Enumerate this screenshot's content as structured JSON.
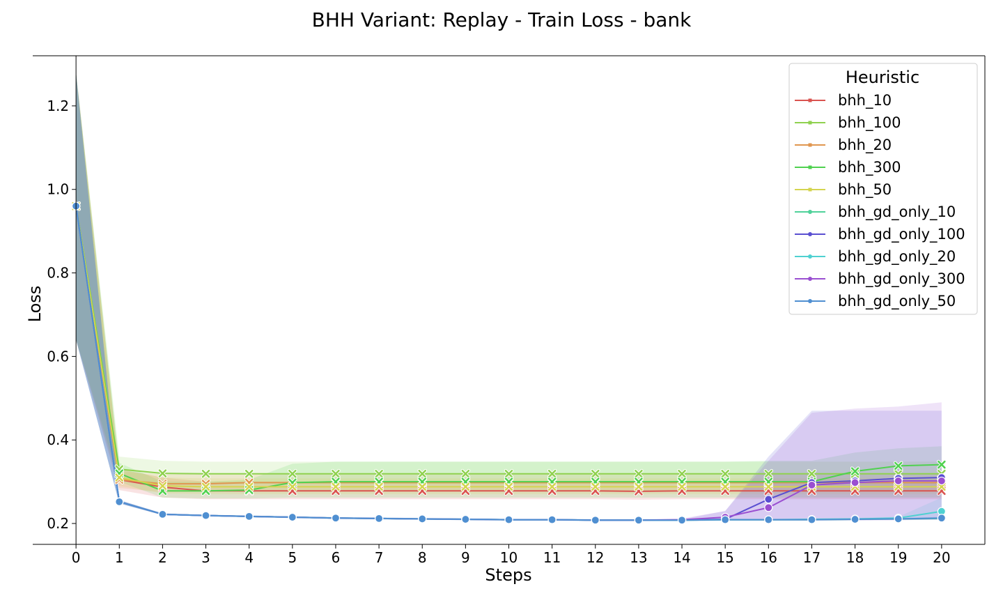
{
  "chart_data": {
    "type": "line",
    "title": "BHH Variant: Replay - Train Loss - bank",
    "xlabel": "Steps",
    "ylabel": "Loss",
    "xlim": [
      -1,
      21
    ],
    "ylim": [
      0.15,
      1.32
    ],
    "x_ticks": [
      0,
      1,
      2,
      3,
      4,
      5,
      6,
      7,
      8,
      9,
      10,
      11,
      12,
      13,
      14,
      15,
      16,
      17,
      18,
      19,
      20
    ],
    "y_ticks": [
      0.2,
      0.4,
      0.6,
      0.8,
      1.0,
      1.2
    ],
    "y_tick_labels": [
      "0.2",
      "0.4",
      "0.6",
      "0.8",
      "1.0",
      "1.2"
    ],
    "grid": false,
    "legend": {
      "title": "Heuristic",
      "position": "top-right"
    },
    "x": [
      0,
      1,
      2,
      3,
      4,
      5,
      6,
      7,
      8,
      9,
      10,
      11,
      12,
      13,
      14,
      15,
      16,
      17,
      18,
      19,
      20
    ],
    "series": [
      {
        "name": "bhh_10",
        "color": "#d9534f",
        "marker": "x",
        "values": [
          0.96,
          0.305,
          0.287,
          0.278,
          0.278,
          0.278,
          0.278,
          0.278,
          0.278,
          0.278,
          0.278,
          0.278,
          0.278,
          0.277,
          0.278,
          0.278,
          0.278,
          0.278,
          0.278,
          0.278,
          0.278
        ],
        "band_lower": [
          0.64,
          0.28,
          0.262,
          0.258,
          0.258,
          0.258,
          0.258,
          0.258,
          0.258,
          0.258,
          0.258,
          0.258,
          0.258,
          0.257,
          0.258,
          0.258,
          0.258,
          0.258,
          0.258,
          0.258,
          0.258
        ],
        "band_upper": [
          1.28,
          0.33,
          0.31,
          0.3,
          0.3,
          0.3,
          0.3,
          0.3,
          0.3,
          0.3,
          0.3,
          0.3,
          0.3,
          0.3,
          0.3,
          0.3,
          0.3,
          0.3,
          0.3,
          0.3,
          0.3
        ]
      },
      {
        "name": "bhh_100",
        "color": "#8fd14f",
        "marker": "x",
        "values": [
          0.96,
          0.33,
          0.32,
          0.319,
          0.319,
          0.319,
          0.319,
          0.319,
          0.319,
          0.319,
          0.319,
          0.319,
          0.319,
          0.319,
          0.319,
          0.319,
          0.319,
          0.319,
          0.319,
          0.319,
          0.319
        ],
        "band_lower": [
          0.64,
          0.305,
          0.295,
          0.295,
          0.295,
          0.295,
          0.295,
          0.295,
          0.295,
          0.295,
          0.295,
          0.295,
          0.295,
          0.295,
          0.295,
          0.295,
          0.295,
          0.295,
          0.295,
          0.295,
          0.295
        ],
        "band_upper": [
          1.28,
          0.36,
          0.35,
          0.348,
          0.348,
          0.348,
          0.348,
          0.348,
          0.348,
          0.348,
          0.348,
          0.348,
          0.348,
          0.348,
          0.348,
          0.348,
          0.348,
          0.348,
          0.348,
          0.348,
          0.348
        ]
      },
      {
        "name": "bhh_20",
        "color": "#e0964f",
        "marker": "x",
        "values": [
          0.96,
          0.305,
          0.295,
          0.295,
          0.298,
          0.298,
          0.298,
          0.298,
          0.298,
          0.298,
          0.298,
          0.298,
          0.298,
          0.298,
          0.298,
          0.298,
          0.298,
          0.298,
          0.298,
          0.298,
          0.298
        ],
        "band_lower": [
          0.64,
          0.285,
          0.275,
          0.275,
          0.278,
          0.278,
          0.278,
          0.278,
          0.278,
          0.278,
          0.278,
          0.278,
          0.278,
          0.278,
          0.278,
          0.278,
          0.278,
          0.278,
          0.278,
          0.278,
          0.278
        ],
        "band_upper": [
          1.28,
          0.325,
          0.318,
          0.318,
          0.32,
          0.32,
          0.32,
          0.32,
          0.32,
          0.32,
          0.32,
          0.32,
          0.32,
          0.32,
          0.32,
          0.32,
          0.32,
          0.32,
          0.32,
          0.32,
          0.32
        ]
      },
      {
        "name": "bhh_300",
        "color": "#4fd14f",
        "marker": "x",
        "values": [
          0.96,
          0.32,
          0.278,
          0.278,
          0.28,
          0.298,
          0.3,
          0.3,
          0.3,
          0.3,
          0.3,
          0.3,
          0.3,
          0.3,
          0.3,
          0.3,
          0.3,
          0.3,
          0.325,
          0.338,
          0.341
        ],
        "band_lower": [
          0.64,
          0.3,
          0.262,
          0.26,
          0.26,
          0.262,
          0.262,
          0.262,
          0.262,
          0.262,
          0.262,
          0.262,
          0.262,
          0.262,
          0.262,
          0.262,
          0.262,
          0.262,
          0.262,
          0.262,
          0.262
        ],
        "band_upper": [
          1.28,
          0.345,
          0.3,
          0.3,
          0.305,
          0.343,
          0.348,
          0.348,
          0.348,
          0.348,
          0.348,
          0.348,
          0.348,
          0.348,
          0.348,
          0.348,
          0.35,
          0.35,
          0.37,
          0.38,
          0.385
        ]
      },
      {
        "name": "bhh_50",
        "color": "#d4d44f",
        "marker": "x",
        "values": [
          0.96,
          0.31,
          0.29,
          0.288,
          0.288,
          0.288,
          0.288,
          0.288,
          0.288,
          0.288,
          0.288,
          0.288,
          0.288,
          0.288,
          0.288,
          0.288,
          0.288,
          0.288,
          0.288,
          0.288,
          0.288
        ],
        "band_lower": [
          0.64,
          0.29,
          0.272,
          0.27,
          0.27,
          0.27,
          0.27,
          0.27,
          0.27,
          0.27,
          0.27,
          0.27,
          0.27,
          0.27,
          0.27,
          0.27,
          0.27,
          0.27,
          0.27,
          0.27,
          0.27
        ],
        "band_upper": [
          1.28,
          0.33,
          0.31,
          0.308,
          0.308,
          0.308,
          0.308,
          0.308,
          0.308,
          0.308,
          0.308,
          0.308,
          0.308,
          0.308,
          0.308,
          0.308,
          0.308,
          0.308,
          0.308,
          0.308,
          0.308
        ]
      },
      {
        "name": "bhh_gd_only_10",
        "color": "#4fd19a",
        "marker": "o",
        "values": [
          0.96,
          0.252,
          0.222,
          0.219,
          0.217,
          0.215,
          0.213,
          0.212,
          0.211,
          0.21,
          0.209,
          0.209,
          0.208,
          0.208,
          0.208,
          0.209,
          0.209,
          0.209,
          0.21,
          0.211,
          0.212
        ],
        "band_lower": [
          0.64,
          0.248,
          0.22,
          0.217,
          0.215,
          0.213,
          0.211,
          0.21,
          0.209,
          0.208,
          0.207,
          0.207,
          0.206,
          0.206,
          0.206,
          0.207,
          0.207,
          0.207,
          0.208,
          0.209,
          0.21
        ],
        "band_upper": [
          1.28,
          0.256,
          0.224,
          0.221,
          0.219,
          0.217,
          0.215,
          0.214,
          0.213,
          0.212,
          0.211,
          0.211,
          0.21,
          0.21,
          0.21,
          0.211,
          0.211,
          0.211,
          0.212,
          0.213,
          0.214
        ]
      },
      {
        "name": "bhh_gd_only_100",
        "color": "#5a4fd1",
        "marker": "o",
        "values": [
          0.96,
          0.252,
          0.222,
          0.219,
          0.217,
          0.215,
          0.213,
          0.212,
          0.211,
          0.21,
          0.209,
          0.209,
          0.208,
          0.208,
          0.208,
          0.21,
          0.258,
          0.298,
          0.302,
          0.308,
          0.31
        ],
        "band_lower": [
          0.64,
          0.248,
          0.22,
          0.217,
          0.215,
          0.213,
          0.211,
          0.21,
          0.209,
          0.208,
          0.207,
          0.207,
          0.206,
          0.206,
          0.206,
          0.207,
          0.207,
          0.207,
          0.208,
          0.208,
          0.209
        ],
        "band_upper": [
          1.28,
          0.256,
          0.224,
          0.221,
          0.219,
          0.217,
          0.215,
          0.214,
          0.213,
          0.212,
          0.211,
          0.211,
          0.21,
          0.21,
          0.21,
          0.23,
          0.36,
          0.47,
          0.47,
          0.47,
          0.47
        ]
      },
      {
        "name": "bhh_gd_only_20",
        "color": "#4fd1d1",
        "marker": "o",
        "values": [
          0.96,
          0.252,
          0.222,
          0.219,
          0.217,
          0.215,
          0.213,
          0.212,
          0.211,
          0.21,
          0.209,
          0.209,
          0.208,
          0.208,
          0.208,
          0.209,
          0.209,
          0.21,
          0.211,
          0.213,
          0.229
        ],
        "band_lower": [
          0.64,
          0.248,
          0.22,
          0.217,
          0.215,
          0.213,
          0.211,
          0.21,
          0.209,
          0.208,
          0.207,
          0.207,
          0.206,
          0.206,
          0.206,
          0.207,
          0.207,
          0.208,
          0.209,
          0.21,
          0.21
        ],
        "band_upper": [
          1.28,
          0.256,
          0.224,
          0.221,
          0.219,
          0.217,
          0.215,
          0.214,
          0.213,
          0.212,
          0.211,
          0.211,
          0.21,
          0.21,
          0.21,
          0.211,
          0.211,
          0.212,
          0.213,
          0.216,
          0.262
        ]
      },
      {
        "name": "bhh_gd_only_300",
        "color": "#9a4fd1",
        "marker": "o",
        "values": [
          0.96,
          0.252,
          0.222,
          0.219,
          0.217,
          0.215,
          0.213,
          0.212,
          0.211,
          0.21,
          0.209,
          0.209,
          0.208,
          0.208,
          0.209,
          0.215,
          0.238,
          0.292,
          0.298,
          0.302,
          0.302
        ],
        "band_lower": [
          0.64,
          0.248,
          0.22,
          0.217,
          0.215,
          0.213,
          0.211,
          0.21,
          0.209,
          0.208,
          0.207,
          0.207,
          0.206,
          0.206,
          0.206,
          0.207,
          0.207,
          0.207,
          0.207,
          0.208,
          0.209
        ],
        "band_upper": [
          1.28,
          0.256,
          0.224,
          0.221,
          0.219,
          0.217,
          0.215,
          0.214,
          0.213,
          0.212,
          0.211,
          0.211,
          0.21,
          0.21,
          0.212,
          0.23,
          0.35,
          0.465,
          0.475,
          0.48,
          0.49
        ]
      },
      {
        "name": "bhh_gd_only_50",
        "color": "#4f8fd1",
        "marker": "o",
        "values": [
          0.96,
          0.252,
          0.222,
          0.219,
          0.217,
          0.215,
          0.213,
          0.212,
          0.211,
          0.21,
          0.209,
          0.209,
          0.208,
          0.208,
          0.208,
          0.209,
          0.209,
          0.209,
          0.21,
          0.211,
          0.213
        ],
        "band_lower": [
          0.64,
          0.248,
          0.22,
          0.217,
          0.215,
          0.213,
          0.211,
          0.21,
          0.209,
          0.208,
          0.207,
          0.207,
          0.206,
          0.206,
          0.206,
          0.207,
          0.207,
          0.207,
          0.208,
          0.209,
          0.21
        ],
        "band_upper": [
          1.28,
          0.256,
          0.224,
          0.221,
          0.219,
          0.217,
          0.215,
          0.214,
          0.213,
          0.212,
          0.211,
          0.211,
          0.21,
          0.21,
          0.21,
          0.211,
          0.211,
          0.211,
          0.212,
          0.213,
          0.216
        ]
      }
    ]
  }
}
